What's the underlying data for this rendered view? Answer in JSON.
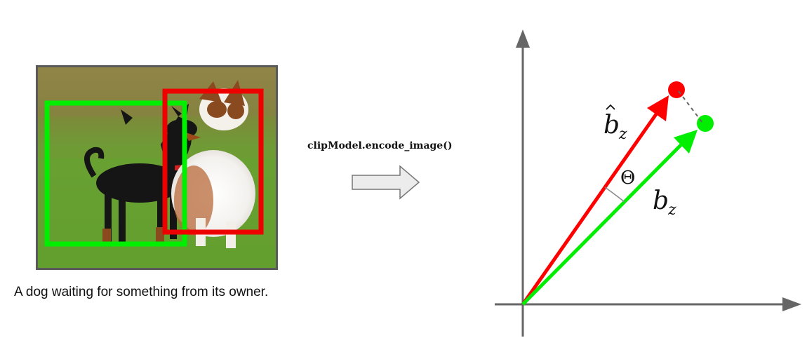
{
  "caption": "A dog waiting for something from its owner.",
  "encode_label": "clipModel.encode_image()",
  "vector_plot": {
    "theta_label": "Θ",
    "b_hat_label": "b",
    "b_hat_subscript": "z",
    "b_label": "b",
    "b_subscript": "z",
    "colors": {
      "b_hat": "#ff0000",
      "b": "#00ee00",
      "axes": "#666666"
    }
  },
  "image": {
    "boxes": [
      {
        "label": "green-box",
        "color": "#00ee00"
      },
      {
        "label": "red-box",
        "color": "#ee0000"
      }
    ]
  }
}
